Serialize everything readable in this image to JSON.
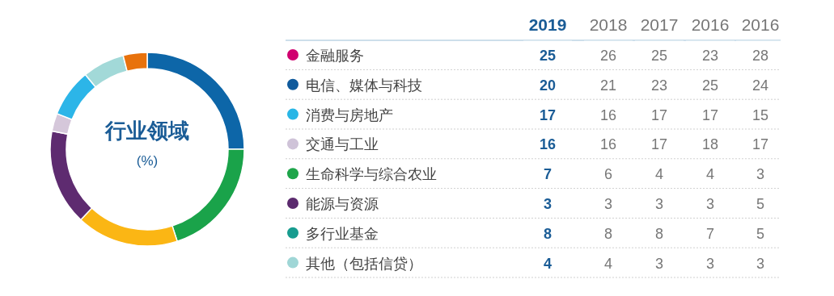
{
  "chart_data": [
    {
      "type": "donut",
      "title": "行业领域",
      "subtitle": "(%)",
      "categories": [
        null,
        null,
        null,
        null,
        null,
        null,
        null,
        null
      ],
      "values": [
        25,
        20,
        17,
        16,
        3,
        8,
        7,
        4
      ],
      "colors": [
        "#0d66a8",
        "#1aa34a",
        "#fbb614",
        "#5e2b70",
        "#d5c7da",
        "#2cb5e8",
        "#a2d9d8",
        "#e8720c"
      ]
    },
    {
      "type": "heatmap",
      "categories": [
        "2019",
        "2018",
        "2017",
        "2016",
        "2016"
      ],
      "y_categories": [
        "金融服务",
        "电信、媒体与科技",
        "消费与房地产",
        "交通与工业",
        "生命科学与综合农业",
        "能源与资源",
        "多行业基金",
        "其他（包括信贷）"
      ],
      "colors": [
        "#d0006f",
        "#0f5a9c",
        "#29b6e6",
        "#cfc3d8",
        "#1ea54a",
        "#5b2a6e",
        "#179c8f",
        "#9fd6d6"
      ],
      "cells": [
        [
          25,
          26,
          25,
          23,
          28
        ],
        [
          20,
          21,
          23,
          25,
          24
        ],
        [
          17,
          16,
          17,
          17,
          15
        ],
        [
          16,
          16,
          17,
          18,
          17
        ],
        [
          7,
          6,
          4,
          4,
          3
        ],
        [
          3,
          3,
          3,
          3,
          5
        ],
        [
          8,
          8,
          8,
          7,
          5
        ],
        [
          4,
          4,
          3,
          3,
          3
        ]
      ],
      "data_labels": true
    }
  ]
}
